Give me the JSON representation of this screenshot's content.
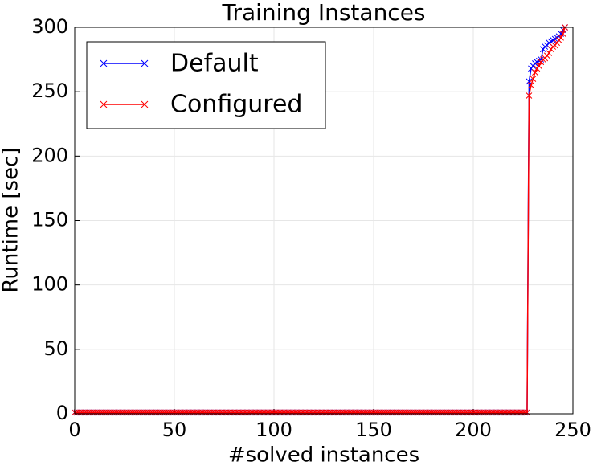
{
  "chart_data": {
    "type": "line",
    "title": "Training Instances",
    "xlabel": "#solved instances",
    "ylabel": "Runtime [sec]",
    "xlim": [
      0,
      250
    ],
    "xticks": [
      0,
      50,
      100,
      150,
      200,
      250
    ],
    "ylim": [
      0,
      300
    ],
    "yticks": [
      0,
      50,
      100,
      150,
      200,
      250,
      300
    ],
    "grid": true,
    "legend": "upper left",
    "marker": "x",
    "x": [
      0,
      1,
      2,
      3,
      4,
      5,
      6,
      7,
      8,
      9,
      10,
      11,
      12,
      13,
      14,
      15,
      16,
      17,
      18,
      19,
      20,
      21,
      22,
      23,
      24,
      25,
      26,
      27,
      28,
      29,
      30,
      31,
      32,
      33,
      34,
      35,
      36,
      37,
      38,
      39,
      40,
      41,
      42,
      43,
      44,
      45,
      46,
      47,
      48,
      49,
      50,
      51,
      52,
      53,
      54,
      55,
      56,
      57,
      58,
      59,
      60,
      61,
      62,
      63,
      64,
      65,
      66,
      67,
      68,
      69,
      70,
      71,
      72,
      73,
      74,
      75,
      76,
      77,
      78,
      79,
      80,
      81,
      82,
      83,
      84,
      85,
      86,
      87,
      88,
      89,
      90,
      91,
      92,
      93,
      94,
      95,
      96,
      97,
      98,
      99,
      100,
      101,
      102,
      103,
      104,
      105,
      106,
      107,
      108,
      109,
      110,
      111,
      112,
      113,
      114,
      115,
      116,
      117,
      118,
      119,
      120,
      121,
      122,
      123,
      124,
      125,
      126,
      127,
      128,
      129,
      130,
      131,
      132,
      133,
      134,
      135,
      136,
      137,
      138,
      139,
      140,
      141,
      142,
      143,
      144,
      145,
      146,
      147,
      148,
      149,
      150,
      151,
      152,
      153,
      154,
      155,
      156,
      157,
      158,
      159,
      160,
      161,
      162,
      163,
      164,
      165,
      166,
      167,
      168,
      169,
      170,
      171,
      172,
      173,
      174,
      175,
      176,
      177,
      178,
      179,
      180,
      181,
      182,
      183,
      184,
      185,
      186,
      187,
      188,
      189,
      190,
      191,
      192,
      193,
      194,
      195,
      196,
      197,
      198,
      199,
      200,
      201,
      202,
      203,
      204,
      205,
      206,
      207,
      208,
      209,
      210,
      211,
      212,
      213,
      214,
      215,
      216,
      217,
      218,
      219,
      220,
      221,
      222,
      223,
      224,
      225,
      226,
      227,
      228,
      229,
      230,
      231,
      232,
      233,
      234,
      235,
      236,
      237,
      238,
      239,
      240,
      241,
      242,
      243,
      244,
      245,
      246
    ],
    "series": [
      {
        "name": "Default",
        "color": "#0000ff",
        "values": [
          1,
          1,
          1,
          1,
          1,
          1,
          1,
          1,
          1,
          1,
          1,
          1,
          1,
          1,
          1,
          1,
          1,
          1,
          1,
          1,
          1,
          1,
          1,
          1,
          1,
          1,
          1,
          1,
          1,
          1,
          1,
          1,
          1,
          1,
          1,
          1,
          1,
          1,
          1,
          1,
          1,
          1,
          1,
          1,
          1,
          1,
          1,
          1,
          1,
          1,
          1,
          1,
          1,
          1,
          1,
          1,
          1,
          1,
          1,
          1,
          1,
          1,
          1,
          1,
          1,
          1,
          1,
          1,
          1,
          1,
          1,
          1,
          1,
          1,
          1,
          1,
          1,
          1,
          1,
          1,
          1,
          1,
          1,
          1,
          1,
          1,
          1,
          1,
          1,
          1,
          1,
          1,
          1,
          1,
          1,
          1,
          1,
          1,
          1,
          1,
          1,
          1,
          1,
          1,
          1,
          1,
          1,
          1,
          1,
          1,
          1,
          1,
          1,
          1,
          1,
          1,
          1,
          1,
          1,
          1,
          1,
          1,
          1,
          1,
          1,
          1,
          1,
          1,
          1,
          1,
          1,
          1,
          1,
          1,
          1,
          1,
          1,
          1,
          1,
          1,
          1,
          1,
          1,
          1,
          1,
          1,
          1,
          1,
          1,
          1,
          1,
          1,
          1,
          1,
          1,
          1,
          1,
          1,
          1,
          1,
          1,
          1,
          1,
          1,
          1,
          1,
          1,
          1,
          1,
          1,
          1,
          1,
          1,
          1,
          1,
          1,
          1,
          1,
          1,
          1,
          1,
          1,
          1,
          1,
          1,
          1,
          1,
          1,
          1,
          1,
          1,
          1,
          1,
          1,
          1,
          1,
          1,
          1,
          1,
          1,
          1,
          1,
          1,
          1,
          1,
          1,
          1,
          1,
          1,
          1,
          1,
          1,
          1,
          1,
          1,
          1,
          1,
          1,
          1,
          1,
          1,
          1,
          1,
          1,
          1,
          1,
          1,
          1,
          258,
          268,
          270,
          272,
          273,
          274,
          275,
          283,
          285,
          286,
          288,
          289,
          290,
          291,
          292,
          293,
          295,
          298,
          300
        ]
      },
      {
        "name": "Configured",
        "color": "#ff0000",
        "values": [
          1,
          1,
          1,
          1,
          1,
          1,
          1,
          1,
          1,
          1,
          1,
          1,
          1,
          1,
          1,
          1,
          1,
          1,
          1,
          1,
          1,
          1,
          1,
          1,
          1,
          1,
          1,
          1,
          1,
          1,
          1,
          1,
          1,
          1,
          1,
          1,
          1,
          1,
          1,
          1,
          1,
          1,
          1,
          1,
          1,
          1,
          1,
          1,
          1,
          1,
          1,
          1,
          1,
          1,
          1,
          1,
          1,
          1,
          1,
          1,
          1,
          1,
          1,
          1,
          1,
          1,
          1,
          1,
          1,
          1,
          1,
          1,
          1,
          1,
          1,
          1,
          1,
          1,
          1,
          1,
          1,
          1,
          1,
          1,
          1,
          1,
          1,
          1,
          1,
          1,
          1,
          1,
          1,
          1,
          1,
          1,
          1,
          1,
          1,
          1,
          1,
          1,
          1,
          1,
          1,
          1,
          1,
          1,
          1,
          1,
          1,
          1,
          1,
          1,
          1,
          1,
          1,
          1,
          1,
          1,
          1,
          1,
          1,
          1,
          1,
          1,
          1,
          1,
          1,
          1,
          1,
          1,
          1,
          1,
          1,
          1,
          1,
          1,
          1,
          1,
          1,
          1,
          1,
          1,
          1,
          1,
          1,
          1,
          1,
          1,
          1,
          1,
          1,
          1,
          1,
          1,
          1,
          1,
          1,
          1,
          1,
          1,
          1,
          1,
          1,
          1,
          1,
          1,
          1,
          1,
          1,
          1,
          1,
          1,
          1,
          1,
          1,
          1,
          1,
          1,
          1,
          1,
          1,
          1,
          1,
          1,
          1,
          1,
          1,
          1,
          1,
          1,
          1,
          1,
          1,
          1,
          1,
          1,
          1,
          1,
          1,
          1,
          1,
          1,
          1,
          1,
          1,
          1,
          1,
          1,
          1,
          1,
          1,
          1,
          1,
          1,
          1,
          1,
          1,
          1,
          1,
          1,
          1,
          1,
          1,
          1,
          1,
          1,
          247,
          255,
          260,
          265,
          268,
          270,
          273,
          275,
          276,
          278,
          280,
          283,
          285,
          286,
          288,
          290,
          292,
          295,
          300
        ]
      }
    ]
  }
}
